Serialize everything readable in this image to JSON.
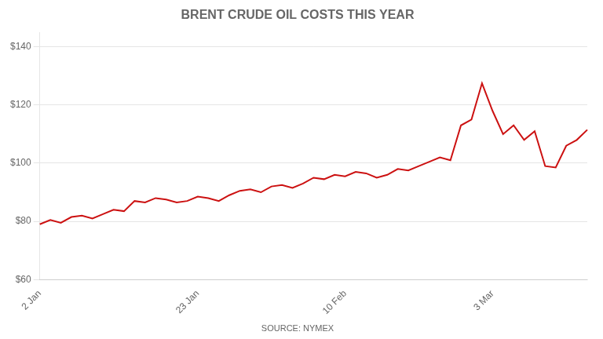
{
  "chart_data": {
    "type": "line",
    "title": "BRENT CRUDE OIL COSTS THIS YEAR",
    "annotations": [
      "SOURCE: NYMEX"
    ],
    "categories": [
      "2 Jan",
      null,
      null,
      null,
      null,
      null,
      null,
      null,
      null,
      null,
      null,
      null,
      null,
      null,
      null,
      "23 Jan",
      null,
      null,
      null,
      null,
      null,
      null,
      null,
      null,
      null,
      null,
      null,
      null,
      null,
      "10 Feb",
      null,
      null,
      null,
      null,
      null,
      null,
      null,
      null,
      null,
      null,
      null,
      null,
      null,
      "3 Mar",
      null,
      null,
      null,
      null,
      null,
      null,
      null,
      null,
      null
    ],
    "values": [
      79.0,
      80.5,
      79.5,
      81.5,
      82.0,
      81.0,
      82.5,
      84.0,
      83.5,
      87.0,
      86.5,
      88.0,
      87.5,
      86.5,
      87.0,
      88.5,
      88.0,
      87.0,
      89.0,
      90.5,
      91.0,
      90.0,
      92.0,
      92.5,
      91.5,
      93.0,
      95.0,
      94.5,
      96.0,
      95.5,
      97.0,
      96.5,
      95.0,
      96.0,
      98.0,
      97.5,
      99.0,
      100.5,
      102.0,
      101.0,
      113.0,
      115.0,
      127.5,
      118.0,
      110.0,
      113.0,
      108.0,
      111.0,
      99.0,
      98.5,
      106.0,
      108.0,
      111.5
    ],
    "color": "#cc1111",
    "ylim": [
      60,
      145
    ],
    "yticks": [
      {
        "value": 60,
        "label": "$60"
      },
      {
        "value": 80,
        "label": "$80"
      },
      {
        "value": 100,
        "label": "$100"
      },
      {
        "value": 120,
        "label": "$120"
      },
      {
        "value": 140,
        "label": "$140"
      }
    ],
    "grid": "y"
  }
}
